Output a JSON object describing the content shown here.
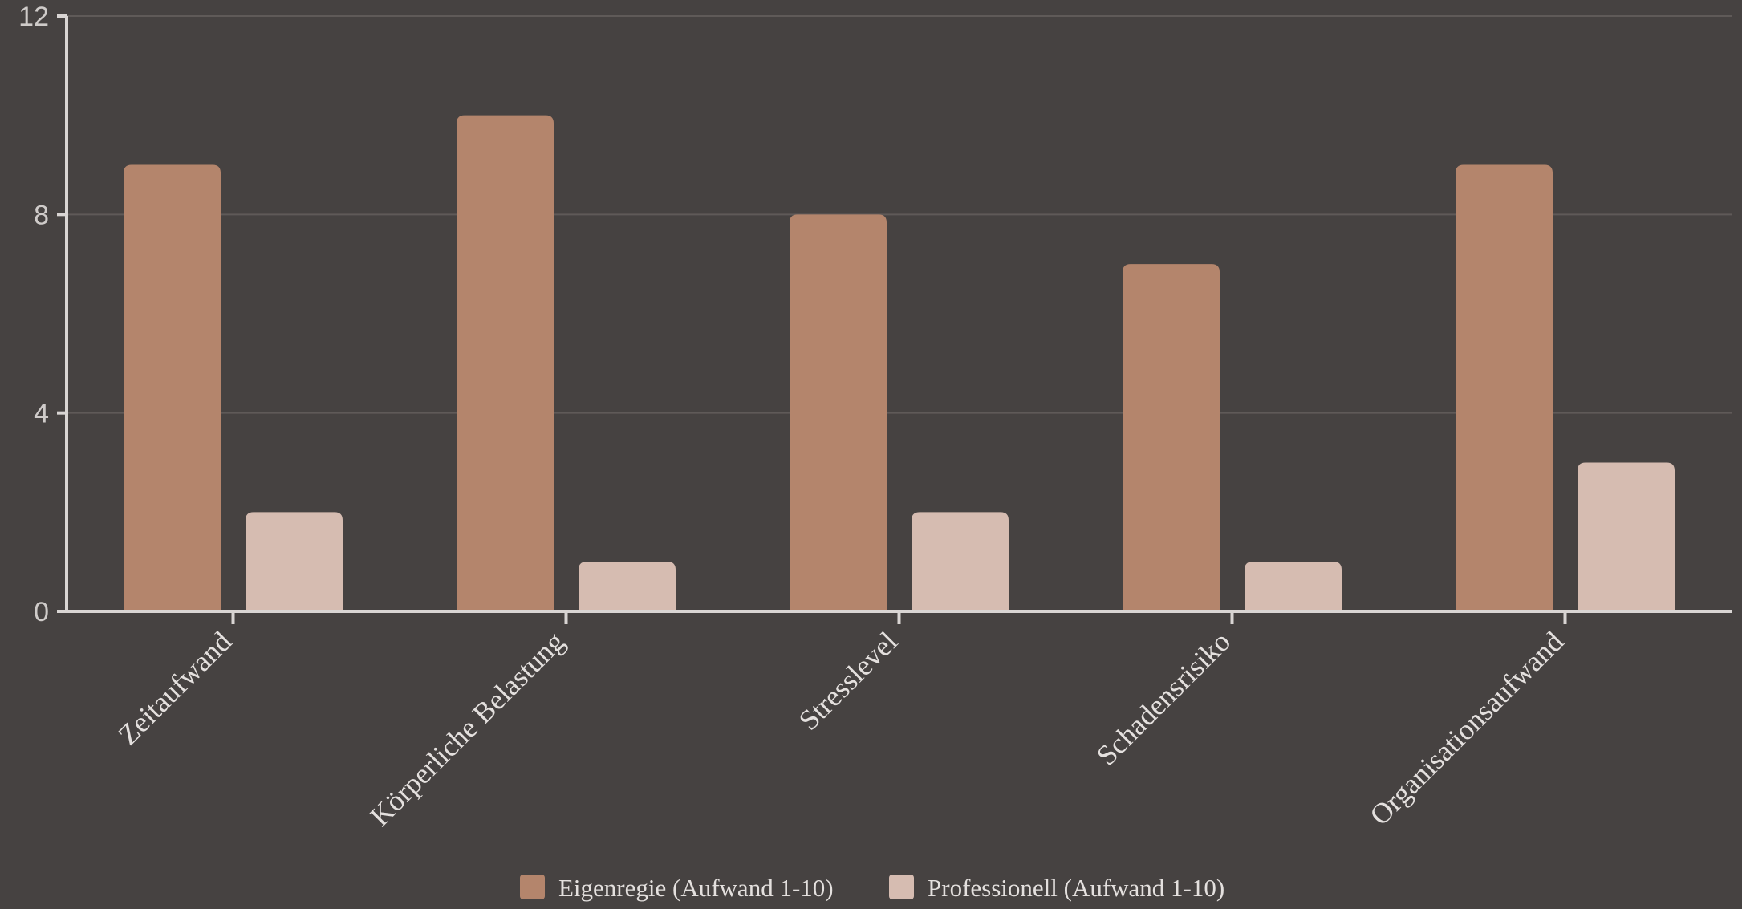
{
  "chart_data": {
    "type": "bar",
    "categories": [
      "Zeitaufwand",
      "Körperliche Belastung",
      "Stresslevel",
      "Schadensrisiko",
      "Organisationsaufwand"
    ],
    "series": [
      {
        "name": "Eigenregie (Aufwand 1-10)",
        "values": [
          9,
          10,
          8,
          7,
          9
        ],
        "color": "#b4856c"
      },
      {
        "name": "Professionell (Aufwand 1-10)",
        "values": [
          2,
          1,
          2,
          1,
          3
        ],
        "color": "#d6bcb1"
      }
    ],
    "ylim": [
      0,
      12
    ],
    "yticks": [
      0,
      4,
      8,
      12
    ],
    "grid": true,
    "legend": "bottom-center",
    "background": "#464241",
    "axis_color": "#d9d5d3"
  }
}
